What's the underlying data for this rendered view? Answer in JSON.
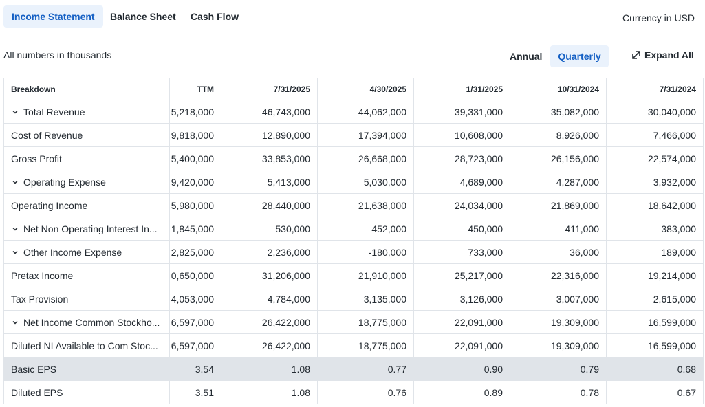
{
  "header": {
    "tabs": [
      "Income Statement",
      "Balance Sheet",
      "Cash Flow"
    ],
    "currency": "Currency in USD"
  },
  "toolbar": {
    "note": "All numbers in thousands",
    "annual": "Annual",
    "quarterly": "Quarterly",
    "expand": "Expand All"
  },
  "table": {
    "columns": [
      "Breakdown",
      "TTM",
      "7/31/2025",
      "4/30/2025",
      "1/31/2025",
      "10/31/2024",
      "7/31/2024"
    ],
    "rows": [
      [
        "Total Revenue",
        "5,218,000",
        "46,743,000",
        "44,062,000",
        "39,331,000",
        "35,082,000",
        "30,040,000"
      ],
      [
        "Cost of Revenue",
        "9,818,000",
        "12,890,000",
        "17,394,000",
        "10,608,000",
        "8,926,000",
        "7,466,000"
      ],
      [
        "Gross Profit",
        "5,400,000",
        "33,853,000",
        "26,668,000",
        "28,723,000",
        "26,156,000",
        "22,574,000"
      ],
      [
        "Operating Expense",
        "9,420,000",
        "5,413,000",
        "5,030,000",
        "4,689,000",
        "4,287,000",
        "3,932,000"
      ],
      [
        "Operating Income",
        "5,980,000",
        "28,440,000",
        "21,638,000",
        "24,034,000",
        "21,869,000",
        "18,642,000"
      ],
      [
        "Net Non Operating Interest In...",
        "1,845,000",
        "530,000",
        "452,000",
        "450,000",
        "411,000",
        "383,000"
      ],
      [
        "Other Income Expense",
        "2,825,000",
        "2,236,000",
        "-180,000",
        "733,000",
        "36,000",
        "189,000"
      ],
      [
        "Pretax Income",
        "0,650,000",
        "31,206,000",
        "21,910,000",
        "25,217,000",
        "22,316,000",
        "19,214,000"
      ],
      [
        "Tax Provision",
        "4,053,000",
        "4,784,000",
        "3,135,000",
        "3,126,000",
        "3,007,000",
        "2,615,000"
      ],
      [
        "Net Income Common Stockho...",
        "6,597,000",
        "26,422,000",
        "18,775,000",
        "22,091,000",
        "19,309,000",
        "16,599,000"
      ],
      [
        "Diluted NI Available to Com Stoc...",
        "6,597,000",
        "26,422,000",
        "18,775,000",
        "22,091,000",
        "19,309,000",
        "16,599,000"
      ],
      [
        "Basic EPS",
        "3.54",
        "1.08",
        "0.77",
        "0.90",
        "0.79",
        "0.68"
      ],
      [
        "Diluted EPS",
        "3.51",
        "1.08",
        "0.76",
        "0.89",
        "0.78",
        "0.67"
      ]
    ]
  }
}
